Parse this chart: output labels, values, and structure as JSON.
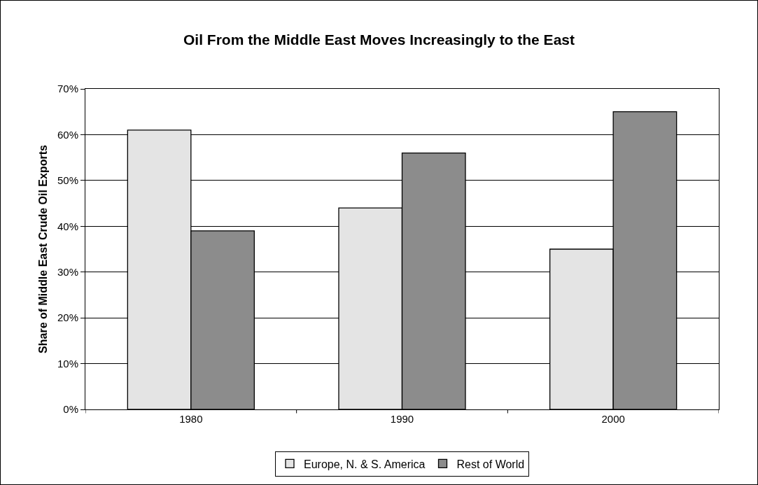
{
  "chart_data": {
    "type": "bar",
    "title": "Oil From the Middle East Moves Increasingly to the East",
    "ylabel": "Share of Middle East Crude Oil Exports",
    "categories": [
      "1980",
      "1990",
      "2000"
    ],
    "series": [
      {
        "name": "Europe, N. & S. America",
        "color": "#e4e4e4",
        "values": [
          61,
          44,
          35
        ]
      },
      {
        "name": "Rest of World",
        "color": "#8c8c8c",
        "values": [
          39,
          56,
          65
        ]
      }
    ],
    "ylim": [
      0,
      70
    ],
    "yticks": [
      {
        "value": 0,
        "label": "0%"
      },
      {
        "value": 10,
        "label": "10%"
      },
      {
        "value": 20,
        "label": "20%"
      },
      {
        "value": 30,
        "label": "30%"
      },
      {
        "value": 40,
        "label": "40%"
      },
      {
        "value": 50,
        "label": "50%"
      },
      {
        "value": 60,
        "label": "60%"
      },
      {
        "value": 70,
        "label": "70%"
      }
    ],
    "grid": "y",
    "legend": "bottom"
  }
}
